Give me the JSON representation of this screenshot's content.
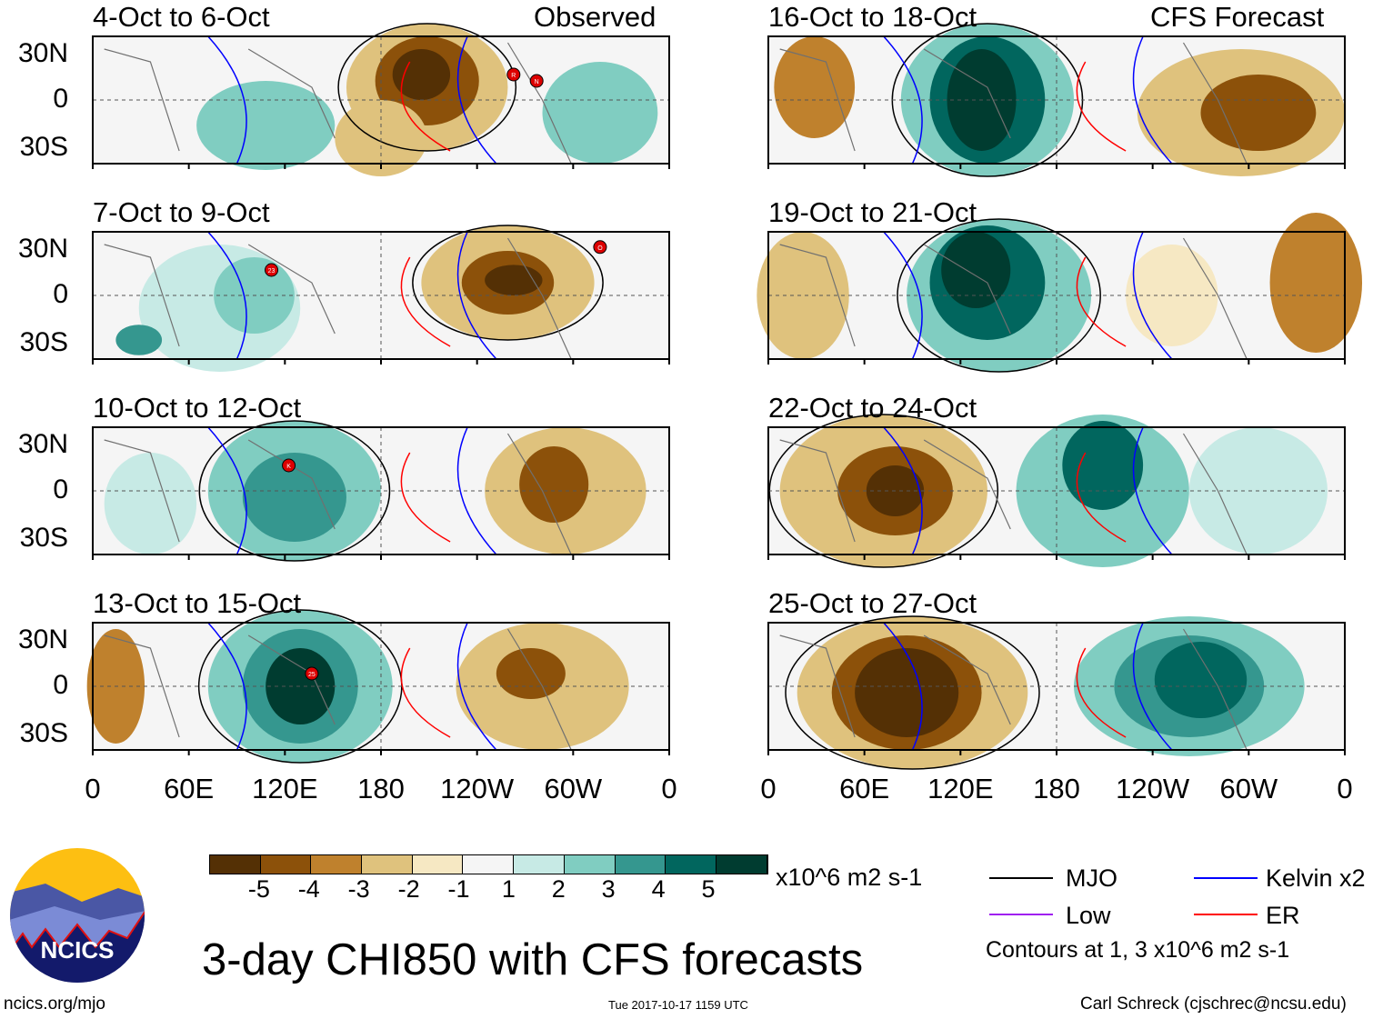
{
  "panels_left": {
    "header_right": "Observed",
    "titles": [
      "4-Oct to 6-Oct",
      "7-Oct to 9-Oct",
      "10-Oct to 12-Oct",
      "13-Oct to 15-Oct"
    ]
  },
  "panels_right": {
    "header_right": "CFS Forecast",
    "titles": [
      "16-Oct to 18-Oct",
      "19-Oct to 21-Oct",
      "22-Oct to 24-Oct",
      "25-Oct to 27-Oct"
    ]
  },
  "lat_labels": [
    "30N",
    "0",
    "30S"
  ],
  "lon_labels": [
    "0",
    "60E",
    "120E",
    "180",
    "120W",
    "60W",
    "0"
  ],
  "storm_labels": [
    "R",
    "N",
    "23",
    "O",
    "K",
    "25"
  ],
  "colorbar": {
    "colors": [
      "#543005",
      "#8c510a",
      "#bf812d",
      "#dfc27d",
      "#f6e8c3",
      "#f5f5f5",
      "#c7eae5",
      "#80cdc1",
      "#35978f",
      "#01665e",
      "#003c30"
    ],
    "labels": [
      "-5",
      "-4",
      "-3",
      "-2",
      "-1",
      "1",
      "2",
      "3",
      "4",
      "5"
    ],
    "units": "x10^6 m2 s-1"
  },
  "legend": {
    "mjo": {
      "label": "MJO",
      "color": "#000000"
    },
    "kelvin": {
      "label": "Kelvin x2",
      "color": "#0000ff"
    },
    "low": {
      "label": "Low",
      "color": "#a020f0"
    },
    "er": {
      "label": "ER",
      "color": "#ff0000"
    },
    "contours_note": "Contours at 1, 3 x10^6 m2 s-1"
  },
  "logo_text": "NCICS",
  "title": "3-day CHI850 with CFS forecasts",
  "footer": {
    "url": "ncics.org/mjo",
    "timestamp": "Tue 2017-10-17 1159 UTC",
    "author": "Carl Schreck (cjschrec@ncsu.edu)"
  }
}
